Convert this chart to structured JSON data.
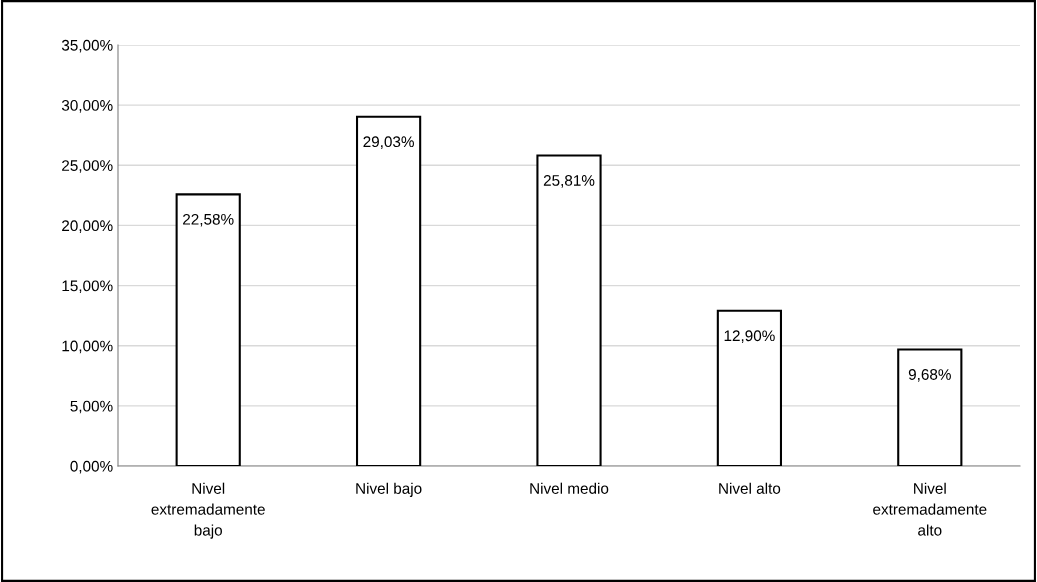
{
  "chart_data": {
    "type": "bar",
    "categories": [
      "Nivel extremadamente bajo",
      "Nivel bajo",
      "Nivel medio",
      "Nivel alto",
      "Nivel extremadamente alto"
    ],
    "values": [
      22.58,
      29.03,
      25.81,
      12.9,
      9.68
    ],
    "value_labels": [
      "22,58%",
      "29,03%",
      "25,81%",
      "12,90%",
      "9,68%"
    ],
    "color": "#ffffff",
    "ylim": [
      0,
      35
    ],
    "yticks": [
      {
        "value": 0,
        "label": "0,00%"
      },
      {
        "value": 5,
        "label": "5,00%"
      },
      {
        "value": 10,
        "label": "10,00%"
      },
      {
        "value": 15,
        "label": "15,00%"
      },
      {
        "value": 20,
        "label": "20,00%"
      },
      {
        "value": 25,
        "label": "25,00%"
      },
      {
        "value": 30,
        "label": "30,00%"
      },
      {
        "value": 35,
        "label": "35,00%"
      }
    ],
    "grid": "y"
  }
}
